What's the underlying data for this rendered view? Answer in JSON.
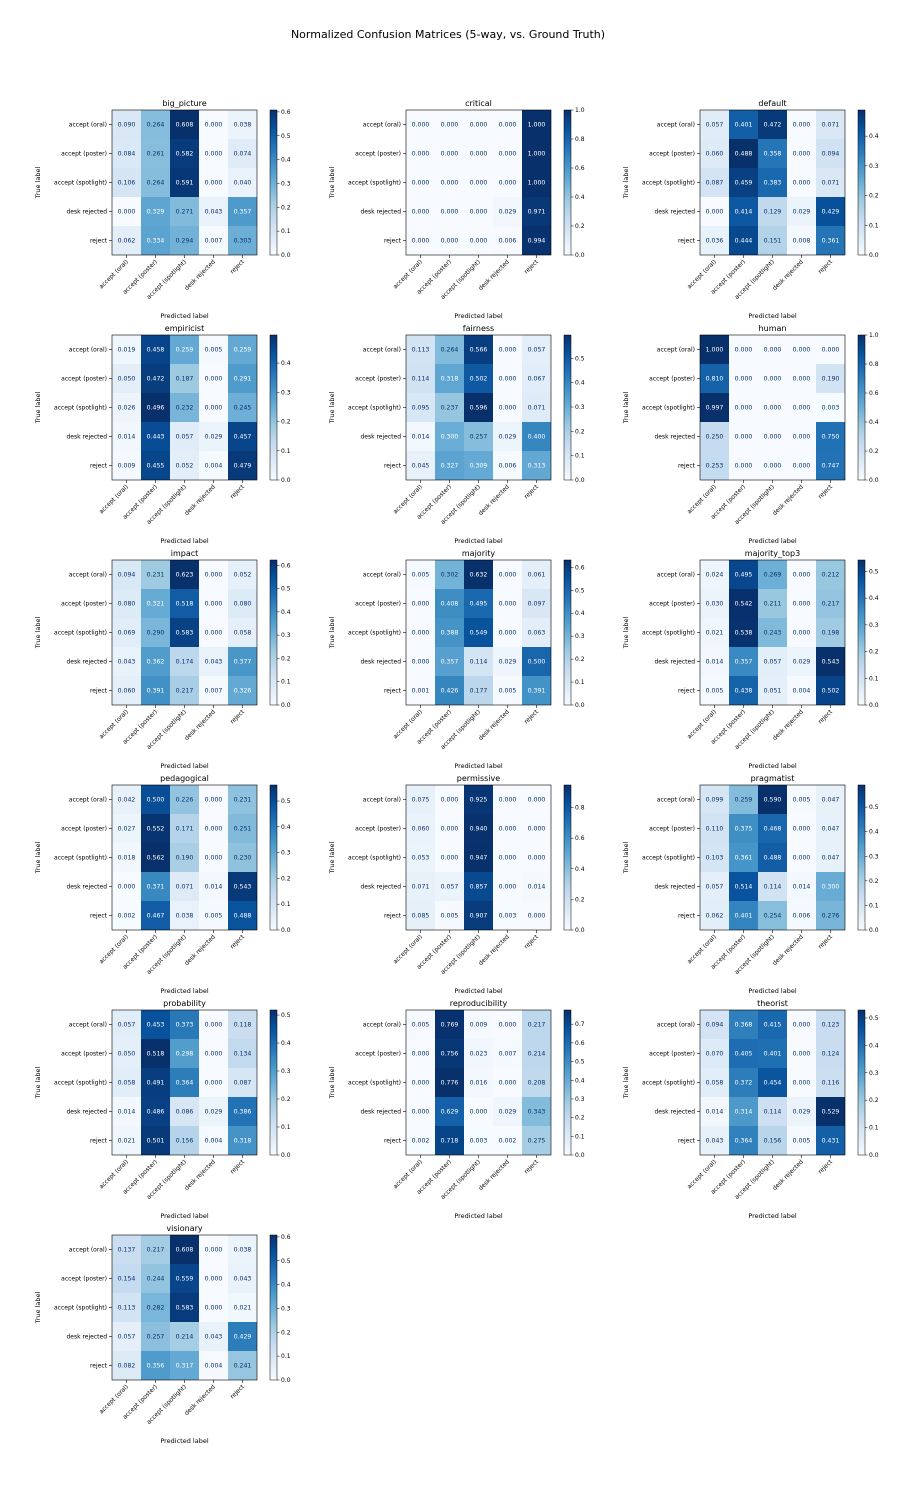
{
  "title": "Normalized Confusion Matrices (5-way, vs. Ground Truth)",
  "colormap": {
    "name": "Blues",
    "low": "#f7fbff",
    "high": "#08306b"
  },
  "chart_data": [
    {
      "type": "heatmap",
      "title": "big_picture",
      "xlabel": "Predicted label",
      "ylabel": "True label",
      "labels": [
        "accept (oral)",
        "accept (poster)",
        "accept (spotlight)",
        "desk rejected",
        "reject"
      ],
      "values": [
        [
          0.09,
          0.264,
          0.608,
          0.0,
          0.038
        ],
        [
          0.084,
          0.261,
          0.582,
          0.0,
          0.074
        ],
        [
          0.106,
          0.264,
          0.591,
          0.0,
          0.04
        ],
        [
          0.0,
          0.329,
          0.271,
          0.043,
          0.357
        ],
        [
          0.062,
          0.334,
          0.294,
          0.007,
          0.303
        ]
      ],
      "colorbar": {
        "max": 0.608,
        "ticks": [
          "0.0",
          "0.1",
          "0.2",
          "0.3",
          "0.4",
          "0.5",
          "0.6"
        ]
      }
    },
    {
      "type": "heatmap",
      "title": "critical",
      "xlabel": "Predicted label",
      "ylabel": "True label",
      "labels": [
        "accept (oral)",
        "accept (poster)",
        "accept (spotlight)",
        "desk rejected",
        "reject"
      ],
      "values": [
        [
          0.0,
          0.0,
          0.0,
          0.0,
          1.0
        ],
        [
          0.0,
          0.0,
          0.0,
          0.0,
          1.0
        ],
        [
          0.0,
          0.0,
          0.0,
          0.0,
          1.0
        ],
        [
          0.0,
          0.0,
          0.0,
          0.029,
          0.971
        ],
        [
          0.0,
          0.0,
          0.0,
          0.006,
          0.994
        ]
      ],
      "colorbar": {
        "max": 1.0,
        "ticks": [
          "0.0",
          "0.2",
          "0.4",
          "0.6",
          "0.8",
          "1.0"
        ]
      }
    },
    {
      "type": "heatmap",
      "title": "default",
      "xlabel": "Predicted label",
      "ylabel": "True label",
      "labels": [
        "accept (oral)",
        "accept (poster)",
        "accept (spotlight)",
        "desk rejected",
        "reject"
      ],
      "values": [
        [
          0.057,
          0.401,
          0.472,
          0.0,
          0.071
        ],
        [
          0.06,
          0.488,
          0.358,
          0.0,
          0.094
        ],
        [
          0.087,
          0.459,
          0.383,
          0.0,
          0.071
        ],
        [
          0.0,
          0.414,
          0.129,
          0.029,
          0.429
        ],
        [
          0.036,
          0.444,
          0.151,
          0.008,
          0.361
        ]
      ],
      "colorbar": {
        "max": 0.488,
        "ticks": [
          "0.0",
          "0.1",
          "0.2",
          "0.3",
          "0.4"
        ]
      }
    },
    {
      "type": "heatmap",
      "title": "empiricist",
      "xlabel": "Predicted label",
      "ylabel": "True label",
      "labels": [
        "accept (oral)",
        "accept (poster)",
        "accept (spotlight)",
        "desk rejected",
        "reject"
      ],
      "values": [
        [
          0.019,
          0.458,
          0.259,
          0.005,
          0.259
        ],
        [
          0.05,
          0.472,
          0.187,
          0.0,
          0.291
        ],
        [
          0.026,
          0.496,
          0.232,
          0.0,
          0.245
        ],
        [
          0.014,
          0.443,
          0.057,
          0.029,
          0.457
        ],
        [
          0.009,
          0.455,
          0.052,
          0.004,
          0.479
        ]
      ],
      "colorbar": {
        "max": 0.496,
        "ticks": [
          "0.0",
          "0.1",
          "0.2",
          "0.3",
          "0.4"
        ]
      }
    },
    {
      "type": "heatmap",
      "title": "fairness",
      "xlabel": "Predicted label",
      "ylabel": "True label",
      "labels": [
        "accept (oral)",
        "accept (poster)",
        "accept (spotlight)",
        "desk rejected",
        "reject"
      ],
      "values": [
        [
          0.113,
          0.264,
          0.566,
          0.0,
          0.057
        ],
        [
          0.114,
          0.318,
          0.502,
          0.0,
          0.067
        ],
        [
          0.095,
          0.237,
          0.596,
          0.0,
          0.071
        ],
        [
          0.014,
          0.3,
          0.257,
          0.029,
          0.4
        ],
        [
          0.045,
          0.327,
          0.309,
          0.006,
          0.313
        ]
      ],
      "colorbar": {
        "max": 0.596,
        "ticks": [
          "0.0",
          "0.1",
          "0.2",
          "0.3",
          "0.4",
          "0.5"
        ]
      }
    },
    {
      "type": "heatmap",
      "title": "human",
      "xlabel": "Predicted label",
      "ylabel": "True label",
      "labels": [
        "accept (oral)",
        "accept (poster)",
        "accept (spotlight)",
        "desk rejected",
        "reject"
      ],
      "values": [
        [
          1.0,
          0.0,
          0.0,
          0.0,
          0.0
        ],
        [
          0.81,
          0.0,
          0.0,
          0.0,
          0.19
        ],
        [
          0.997,
          0.0,
          0.0,
          0.0,
          0.003
        ],
        [
          0.25,
          0.0,
          0.0,
          0.0,
          0.75
        ],
        [
          0.253,
          0.0,
          0.0,
          0.0,
          0.747
        ]
      ],
      "colorbar": {
        "max": 1.0,
        "ticks": [
          "0.0",
          "0.2",
          "0.4",
          "0.6",
          "0.8",
          "1.0"
        ]
      }
    },
    {
      "type": "heatmap",
      "title": "impact",
      "xlabel": "Predicted label",
      "ylabel": "True label",
      "labels": [
        "accept (oral)",
        "accept (poster)",
        "accept (spotlight)",
        "desk rejected",
        "reject"
      ],
      "values": [
        [
          0.094,
          0.231,
          0.623,
          0.0,
          0.052
        ],
        [
          0.08,
          0.321,
          0.518,
          0.0,
          0.08
        ],
        [
          0.069,
          0.29,
          0.583,
          0.0,
          0.058
        ],
        [
          0.043,
          0.362,
          0.174,
          0.043,
          0.377
        ],
        [
          0.06,
          0.391,
          0.217,
          0.007,
          0.326
        ]
      ],
      "colorbar": {
        "max": 0.623,
        "ticks": [
          "0.0",
          "0.1",
          "0.2",
          "0.3",
          "0.4",
          "0.5",
          "0.6"
        ]
      }
    },
    {
      "type": "heatmap",
      "title": "majority",
      "xlabel": "Predicted label",
      "ylabel": "True label",
      "labels": [
        "accept (oral)",
        "accept (poster)",
        "accept (spotlight)",
        "desk rejected",
        "reject"
      ],
      "values": [
        [
          0.005,
          0.302,
          0.632,
          0.0,
          0.061
        ],
        [
          0.0,
          0.408,
          0.495,
          0.0,
          0.097
        ],
        [
          0.0,
          0.388,
          0.549,
          0.0,
          0.063
        ],
        [
          0.0,
          0.357,
          0.114,
          0.029,
          0.5
        ],
        [
          0.001,
          0.426,
          0.177,
          0.005,
          0.391
        ]
      ],
      "colorbar": {
        "max": 0.632,
        "ticks": [
          "0.0",
          "0.1",
          "0.2",
          "0.3",
          "0.4",
          "0.5",
          "0.6"
        ]
      }
    },
    {
      "type": "heatmap",
      "title": "majority_top3",
      "xlabel": "Predicted label",
      "ylabel": "True label",
      "labels": [
        "accept (oral)",
        "accept (poster)",
        "accept (spotlight)",
        "desk rejected",
        "reject"
      ],
      "values": [
        [
          0.024,
          0.495,
          0.269,
          0.0,
          0.212
        ],
        [
          0.03,
          0.542,
          0.211,
          0.0,
          0.217
        ],
        [
          0.021,
          0.538,
          0.243,
          0.0,
          0.198
        ],
        [
          0.014,
          0.357,
          0.057,
          0.029,
          0.543
        ],
        [
          0.005,
          0.438,
          0.051,
          0.004,
          0.502
        ]
      ],
      "colorbar": {
        "max": 0.543,
        "ticks": [
          "0.0",
          "0.1",
          "0.2",
          "0.3",
          "0.4",
          "0.5"
        ]
      }
    },
    {
      "type": "heatmap",
      "title": "pedagogical",
      "xlabel": "Predicted label",
      "ylabel": "True label",
      "labels": [
        "accept (oral)",
        "accept (poster)",
        "accept (spotlight)",
        "desk rejected",
        "reject"
      ],
      "values": [
        [
          0.042,
          0.5,
          0.226,
          0.0,
          0.231
        ],
        [
          0.027,
          0.552,
          0.171,
          0.0,
          0.251
        ],
        [
          0.018,
          0.562,
          0.19,
          0.0,
          0.23
        ],
        [
          0.0,
          0.371,
          0.071,
          0.014,
          0.543
        ],
        [
          0.002,
          0.467,
          0.038,
          0.005,
          0.488
        ]
      ],
      "colorbar": {
        "max": 0.562,
        "ticks": [
          "0.0",
          "0.1",
          "0.2",
          "0.3",
          "0.4",
          "0.5"
        ]
      }
    },
    {
      "type": "heatmap",
      "title": "permissive",
      "xlabel": "Predicted label",
      "ylabel": "True label",
      "labels": [
        "accept (oral)",
        "accept (poster)",
        "accept (spotlight)",
        "desk rejected",
        "reject"
      ],
      "values": [
        [
          0.075,
          0.0,
          0.925,
          0.0,
          0.0
        ],
        [
          0.06,
          0.0,
          0.94,
          0.0,
          0.0
        ],
        [
          0.053,
          0.0,
          0.947,
          0.0,
          0.0
        ],
        [
          0.071,
          0.057,
          0.857,
          0.0,
          0.014
        ],
        [
          0.085,
          0.005,
          0.907,
          0.003,
          0.0
        ]
      ],
      "colorbar": {
        "max": 0.947,
        "ticks": [
          "0.0",
          "0.2",
          "0.4",
          "0.6",
          "0.8"
        ]
      }
    },
    {
      "type": "heatmap",
      "title": "pragmatist",
      "xlabel": "Predicted label",
      "ylabel": "True label",
      "labels": [
        "accept (oral)",
        "accept (poster)",
        "accept (spotlight)",
        "desk rejected",
        "reject"
      ],
      "values": [
        [
          0.099,
          0.259,
          0.59,
          0.005,
          0.047
        ],
        [
          0.11,
          0.375,
          0.468,
          0.0,
          0.047
        ],
        [
          0.103,
          0.361,
          0.488,
          0.0,
          0.047
        ],
        [
          0.057,
          0.514,
          0.114,
          0.014,
          0.3
        ],
        [
          0.062,
          0.401,
          0.254,
          0.006,
          0.276
        ]
      ],
      "colorbar": {
        "max": 0.59,
        "ticks": [
          "0.0",
          "0.1",
          "0.2",
          "0.3",
          "0.4",
          "0.5"
        ]
      }
    },
    {
      "type": "heatmap",
      "title": "probability",
      "xlabel": "Predicted label",
      "ylabel": "True label",
      "labels": [
        "accept (oral)",
        "accept (poster)",
        "accept (spotlight)",
        "desk rejected",
        "reject"
      ],
      "values": [
        [
          0.057,
          0.453,
          0.373,
          0.0,
          0.118
        ],
        [
          0.05,
          0.518,
          0.298,
          0.0,
          0.134
        ],
        [
          0.058,
          0.491,
          0.364,
          0.0,
          0.087
        ],
        [
          0.014,
          0.486,
          0.086,
          0.029,
          0.386
        ],
        [
          0.021,
          0.501,
          0.156,
          0.004,
          0.318
        ]
      ],
      "colorbar": {
        "max": 0.518,
        "ticks": [
          "0.0",
          "0.1",
          "0.2",
          "0.3",
          "0.4",
          "0.5"
        ]
      }
    },
    {
      "type": "heatmap",
      "title": "reproducibility",
      "xlabel": "Predicted label",
      "ylabel": "True label",
      "labels": [
        "accept (oral)",
        "accept (poster)",
        "accept (spotlight)",
        "desk rejected",
        "reject"
      ],
      "values": [
        [
          0.005,
          0.769,
          0.009,
          0.0,
          0.217
        ],
        [
          0.0,
          0.756,
          0.023,
          0.007,
          0.214
        ],
        [
          0.0,
          0.776,
          0.016,
          0.0,
          0.208
        ],
        [
          0.0,
          0.629,
          0.0,
          0.029,
          0.343
        ],
        [
          0.002,
          0.718,
          0.003,
          0.002,
          0.275
        ]
      ],
      "colorbar": {
        "max": 0.776,
        "ticks": [
          "0.0",
          "0.1",
          "0.2",
          "0.3",
          "0.4",
          "0.5",
          "0.6",
          "0.7"
        ]
      }
    },
    {
      "type": "heatmap",
      "title": "theorist",
      "xlabel": "Predicted label",
      "ylabel": "True label",
      "labels": [
        "accept (oral)",
        "accept (poster)",
        "accept (spotlight)",
        "desk rejected",
        "reject"
      ],
      "values": [
        [
          0.094,
          0.368,
          0.415,
          0.0,
          0.123
        ],
        [
          0.07,
          0.405,
          0.401,
          0.0,
          0.124
        ],
        [
          0.058,
          0.372,
          0.454,
          0.0,
          0.116
        ],
        [
          0.014,
          0.314,
          0.114,
          0.029,
          0.529
        ],
        [
          0.043,
          0.364,
          0.156,
          0.005,
          0.431
        ]
      ],
      "colorbar": {
        "max": 0.529,
        "ticks": [
          "0.0",
          "0.1",
          "0.2",
          "0.3",
          "0.4",
          "0.5"
        ]
      }
    },
    {
      "type": "heatmap",
      "title": "visionary",
      "xlabel": "Predicted label",
      "ylabel": "True label",
      "labels": [
        "accept (oral)",
        "accept (poster)",
        "accept (spotlight)",
        "desk rejected",
        "reject"
      ],
      "values": [
        [
          0.137,
          0.217,
          0.608,
          0.0,
          0.038
        ],
        [
          0.154,
          0.244,
          0.559,
          0.0,
          0.043
        ],
        [
          0.113,
          0.282,
          0.583,
          0.0,
          0.021
        ],
        [
          0.057,
          0.257,
          0.214,
          0.043,
          0.429
        ],
        [
          0.082,
          0.356,
          0.317,
          0.004,
          0.241
        ]
      ],
      "colorbar": {
        "max": 0.608,
        "ticks": [
          "0.0",
          "0.1",
          "0.2",
          "0.3",
          "0.4",
          "0.5",
          "0.6"
        ]
      }
    }
  ]
}
